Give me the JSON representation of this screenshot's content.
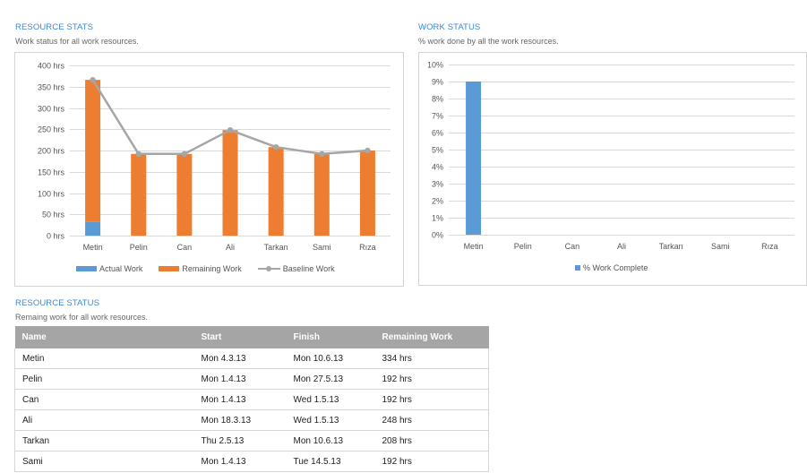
{
  "resource_stats": {
    "title": "RESOURCE STATS",
    "subtitle": "Work status for all work resources.",
    "legend": {
      "actual": "Actual Work",
      "remaining": "Remaining Work",
      "baseline": "Baseline Work"
    }
  },
  "work_status": {
    "title": "WORK STATUS",
    "subtitle": "% work done by all the work resources.",
    "legend": {
      "pct": "% Work Complete"
    }
  },
  "resource_status": {
    "title": "RESOURCE STATUS",
    "subtitle": "Remaing work for all work resources.",
    "columns": [
      "Name",
      "Start",
      "Finish",
      "Remaining Work"
    ],
    "rows": [
      [
        "Metin",
        "Mon 4.3.13",
        "Mon 10.6.13",
        "334 hrs"
      ],
      [
        "Pelin",
        "Mon 1.4.13",
        "Mon 27.5.13",
        "192 hrs"
      ],
      [
        "Can",
        "Mon 1.4.13",
        "Wed 1.5.13",
        "192 hrs"
      ],
      [
        "Ali",
        "Mon 18.3.13",
        "Wed 1.5.13",
        "248 hrs"
      ],
      [
        "Tarkan",
        "Thu 2.5.13",
        "Mon 10.6.13",
        "208 hrs"
      ],
      [
        "Sami",
        "Mon 1.4.13",
        "Tue 14.5.13",
        "192 hrs"
      ]
    ]
  },
  "colors": {
    "accent": "#3a8ad6",
    "actual": "#5b9bd5",
    "remaining": "#ed7d31",
    "baseline": "#a6a6a6",
    "table_header": "#a5a5a5"
  },
  "chart_data": [
    {
      "type": "bar",
      "stacked": true,
      "categories": [
        "Metin",
        "Pelin",
        "Can",
        "Ali",
        "Tarkan",
        "Sami",
        "Rıza"
      ],
      "series": [
        {
          "name": "Actual Work",
          "kind": "bar",
          "values": [
            32,
            0,
            0,
            0,
            0,
            0,
            0
          ]
        },
        {
          "name": "Remaining Work",
          "kind": "bar",
          "values": [
            334,
            192,
            192,
            248,
            208,
            192,
            200
          ]
        },
        {
          "name": "Baseline Work",
          "kind": "line",
          "values": [
            366,
            192,
            192,
            248,
            208,
            192,
            200
          ]
        }
      ],
      "yticks": [
        "0 hrs",
        "50 hrs",
        "100 hrs",
        "150 hrs",
        "200 hrs",
        "250 hrs",
        "300 hrs",
        "350 hrs",
        "400 hrs"
      ],
      "ylim": [
        0,
        400
      ],
      "grid": true,
      "legend": "bottom"
    },
    {
      "type": "bar",
      "categories": [
        "Metin",
        "Pelin",
        "Can",
        "Ali",
        "Tarkan",
        "Sami",
        "Rıza"
      ],
      "series": [
        {
          "name": "% Work Complete",
          "values": [
            9,
            0,
            0,
            0,
            0,
            0,
            0
          ]
        }
      ],
      "yticks": [
        "0%",
        "1%",
        "2%",
        "3%",
        "4%",
        "5%",
        "6%",
        "7%",
        "8%",
        "9%",
        "10%"
      ],
      "ylim": [
        0,
        10
      ],
      "grid": true,
      "legend": "bottom"
    }
  ]
}
